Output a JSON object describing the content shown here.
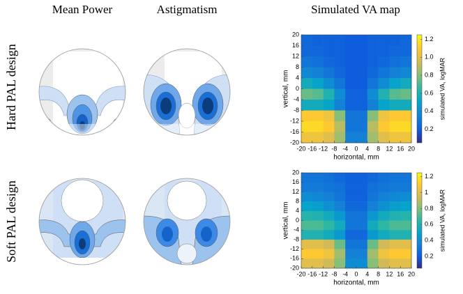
{
  "columns": [
    "Mean Power",
    "Astigmatism",
    "Simulated VA map"
  ],
  "rows": [
    "Hard PAL design",
    "Soft PAL design"
  ],
  "chart_data": [
    {
      "type": "heatmap",
      "xlabel": "horizontal, mm",
      "ylabel": "vertical, mm",
      "colorbar_label": "simulated VA, logMAR",
      "x": [
        -18,
        -14,
        -10,
        -6,
        -2,
        2,
        6,
        10,
        14,
        18
      ],
      "y": [
        18,
        14,
        10,
        6,
        2,
        -2,
        -6,
        -10,
        -14,
        -18
      ],
      "values": [
        [
          0.25,
          0.22,
          0.22,
          0.22,
          0.2,
          0.2,
          0.22,
          0.22,
          0.22,
          0.25
        ],
        [
          0.25,
          0.25,
          0.22,
          0.22,
          0.2,
          0.2,
          0.22,
          0.22,
          0.25,
          0.25
        ],
        [
          0.3,
          0.28,
          0.25,
          0.22,
          0.2,
          0.2,
          0.22,
          0.25,
          0.28,
          0.3
        ],
        [
          0.38,
          0.35,
          0.3,
          0.25,
          0.2,
          0.2,
          0.25,
          0.3,
          0.35,
          0.38
        ],
        [
          0.55,
          0.5,
          0.4,
          0.3,
          0.2,
          0.2,
          0.3,
          0.4,
          0.5,
          0.55
        ],
        [
          0.75,
          0.72,
          0.6,
          0.4,
          0.22,
          0.22,
          0.4,
          0.6,
          0.72,
          0.75
        ],
        [
          0.55,
          0.55,
          0.5,
          0.35,
          0.22,
          0.22,
          0.35,
          0.5,
          0.55,
          0.55
        ],
        [
          1.1,
          1.1,
          1.05,
          0.8,
          0.3,
          0.3,
          0.8,
          1.05,
          1.1,
          1.1
        ],
        [
          1.15,
          1.15,
          1.1,
          0.9,
          0.3,
          0.3,
          0.9,
          1.1,
          1.15,
          1.15
        ],
        [
          1.05,
          1.05,
          1.0,
          0.85,
          0.35,
          0.35,
          0.85,
          1.0,
          1.05,
          1.05
        ]
      ],
      "xlim": [
        -20,
        20
      ],
      "ylim": [
        -20,
        20
      ],
      "xticks": [
        -20,
        -16,
        -12,
        -8,
        -4,
        0,
        4,
        8,
        12,
        16,
        20
      ],
      "yticks": [
        -20,
        -16,
        -12,
        -8,
        -4,
        0,
        4,
        8,
        12,
        16,
        20
      ],
      "clim": [
        0.05,
        1.25
      ],
      "cticks": [
        0.2,
        0.4,
        0.6,
        0.8,
        {
          "value": 1,
          "label": "1.0"
        },
        1.2
      ],
      "colormap": [
        "#352a87",
        "#0f5cdd",
        "#1481d6",
        "#06a4ca",
        "#2eb7a4",
        "#87bf77",
        "#d1bb59",
        "#fec832",
        "#f9fb0e"
      ]
    },
    {
      "type": "heatmap",
      "xlabel": "horizontal, mm",
      "ylabel": "vertical, mm",
      "colorbar_label": "simulated VA, logMAR",
      "x": [
        -18,
        -14,
        -10,
        -6,
        -2,
        2,
        6,
        10,
        14,
        18
      ],
      "y": [
        18,
        14,
        10,
        6,
        2,
        -2,
        -6,
        -10,
        -14,
        -18
      ],
      "values": [
        [
          0.3,
          0.3,
          0.28,
          0.25,
          0.22,
          0.22,
          0.25,
          0.28,
          0.3,
          0.3
        ],
        [
          0.32,
          0.32,
          0.3,
          0.28,
          0.22,
          0.22,
          0.28,
          0.3,
          0.32,
          0.32
        ],
        [
          0.4,
          0.38,
          0.35,
          0.3,
          0.22,
          0.22,
          0.3,
          0.35,
          0.38,
          0.4
        ],
        [
          0.5,
          0.48,
          0.42,
          0.35,
          0.25,
          0.25,
          0.35,
          0.42,
          0.48,
          0.5
        ],
        [
          0.62,
          0.6,
          0.55,
          0.45,
          0.3,
          0.3,
          0.45,
          0.55,
          0.6,
          0.62
        ],
        [
          0.7,
          0.7,
          0.65,
          0.55,
          0.3,
          0.3,
          0.55,
          0.65,
          0.7,
          0.7
        ],
        [
          0.6,
          0.6,
          0.55,
          0.45,
          0.25,
          0.25,
          0.45,
          0.55,
          0.6,
          0.6
        ],
        [
          1.0,
          1.0,
          0.95,
          0.75,
          0.3,
          0.3,
          0.75,
          0.95,
          1.0,
          1.0
        ],
        [
          1.1,
          1.1,
          1.05,
          0.85,
          0.35,
          0.35,
          0.85,
          1.05,
          1.1,
          1.1
        ],
        [
          1.0,
          1.0,
          0.95,
          0.8,
          0.4,
          0.4,
          0.8,
          0.95,
          1.0,
          1.0
        ]
      ],
      "xlim": [
        -20,
        20
      ],
      "ylim": [
        -20,
        20
      ],
      "xticks": [
        -20,
        -16,
        -12,
        -8,
        -4,
        0,
        4,
        8,
        12,
        16,
        20
      ],
      "yticks": [
        -20,
        -16,
        -12,
        -8,
        -4,
        0,
        4,
        8,
        12,
        16,
        20
      ],
      "clim": [
        0.05,
        1.25
      ],
      "cticks": [
        0.2,
        0.4,
        0.6,
        0.8,
        1,
        1.2
      ],
      "colormap": [
        "#352a87",
        "#0f5cdd",
        "#1481d6",
        "#06a4ca",
        "#2eb7a4",
        "#87bf77",
        "#d1bb59",
        "#fec832",
        "#f9fb0e"
      ]
    }
  ]
}
